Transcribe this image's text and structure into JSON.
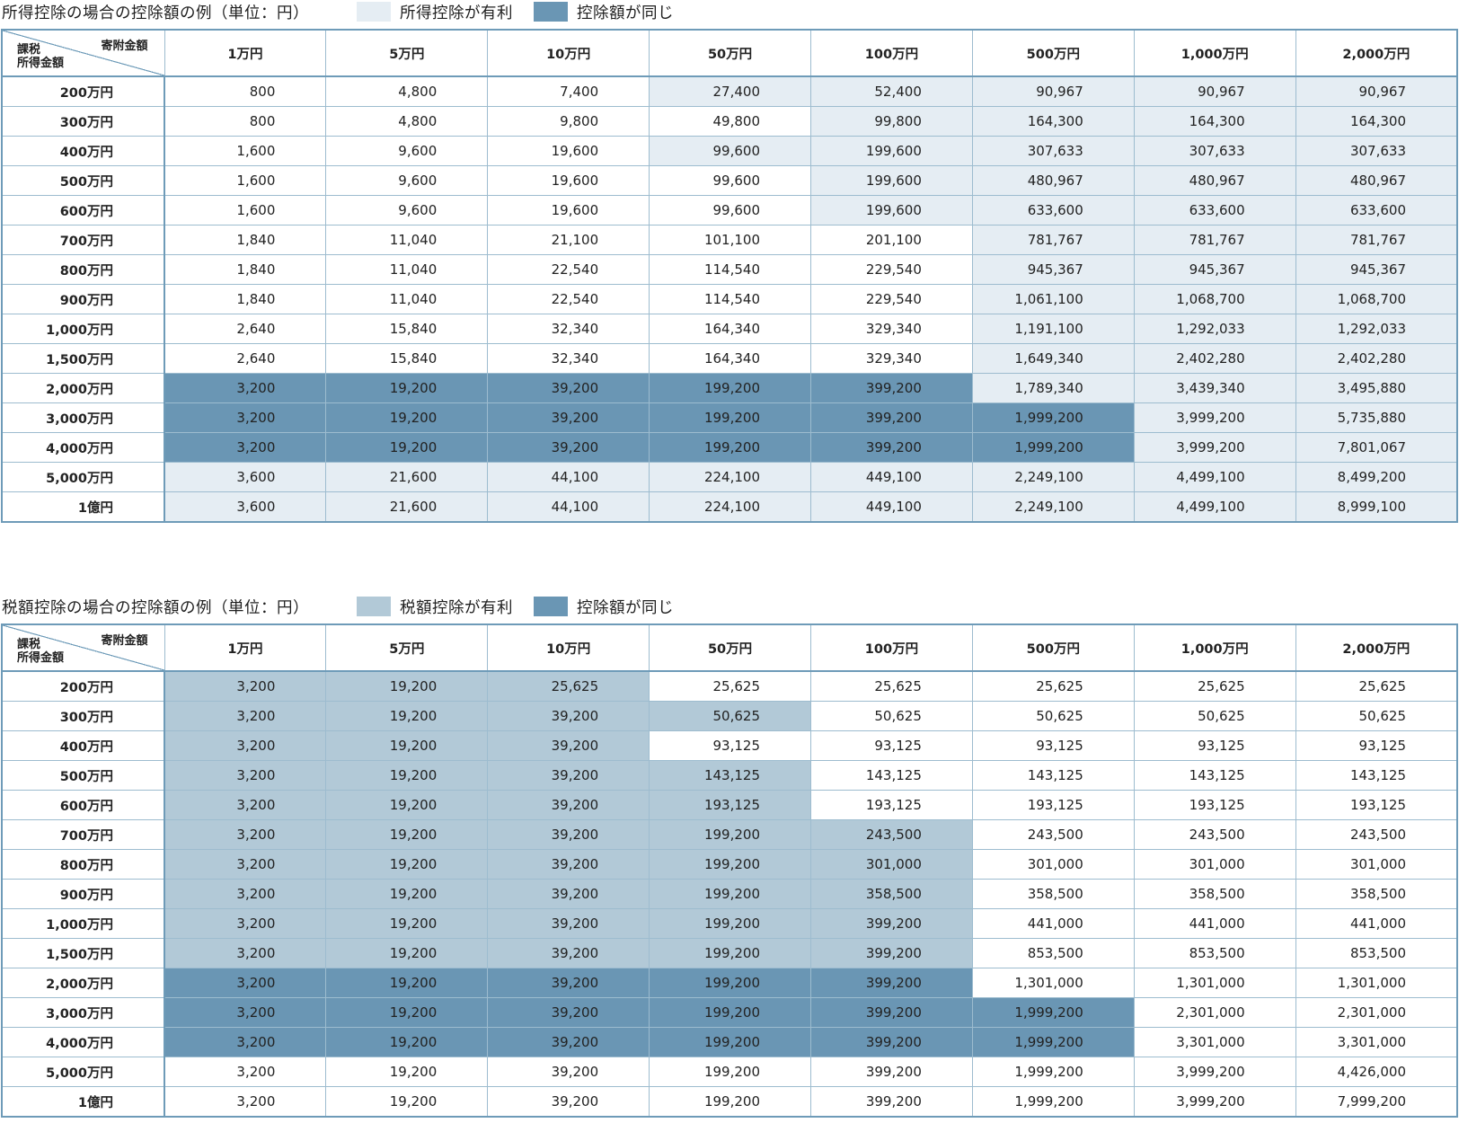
{
  "colors": {
    "light_fill": "#e5edf3",
    "mid_fill": "#b2c9d7",
    "dark_fill": "#6a96b4",
    "border": "#6e9bb8"
  },
  "tables": [
    {
      "title": "所得控除の場合の控除額の例（単位：円）",
      "legend": [
        {
          "label": "所得控除が有利",
          "color": "#e5edf3"
        },
        {
          "label": "控除額が同じ",
          "color": "#6a96b4"
        }
      ],
      "corner_top": "寄附金額",
      "corner_bottom": [
        "課税",
        "所得金額"
      ],
      "columns": [
        "1万円",
        "5万円",
        "10万円",
        "50万円",
        "100万円",
        "500万円",
        "1,000万円",
        "2,000万円"
      ],
      "rows": [
        {
          "label": "200万円",
          "values": [
            "800",
            "4,800",
            "7,400",
            "27,400",
            "52,400",
            "90,967",
            "90,967",
            "90,967"
          ],
          "shade": [
            "",
            "",
            "",
            "L",
            "L",
            "L",
            "L",
            "L"
          ]
        },
        {
          "label": "300万円",
          "values": [
            "800",
            "4,800",
            "9,800",
            "49,800",
            "99,800",
            "164,300",
            "164,300",
            "164,300"
          ],
          "shade": [
            "",
            "",
            "",
            "",
            "L",
            "L",
            "L",
            "L"
          ]
        },
        {
          "label": "400万円",
          "values": [
            "1,600",
            "9,600",
            "19,600",
            "99,600",
            "199,600",
            "307,633",
            "307,633",
            "307,633"
          ],
          "shade": [
            "",
            "",
            "",
            "L",
            "L",
            "L",
            "L",
            "L"
          ]
        },
        {
          "label": "500万円",
          "values": [
            "1,600",
            "9,600",
            "19,600",
            "99,600",
            "199,600",
            "480,967",
            "480,967",
            "480,967"
          ],
          "shade": [
            "",
            "",
            "",
            "",
            "L",
            "L",
            "L",
            "L"
          ]
        },
        {
          "label": "600万円",
          "values": [
            "1,600",
            "9,600",
            "19,600",
            "99,600",
            "199,600",
            "633,600",
            "633,600",
            "633,600"
          ],
          "shade": [
            "",
            "",
            "",
            "",
            "L",
            "L",
            "L",
            "L"
          ]
        },
        {
          "label": "700万円",
          "values": [
            "1,840",
            "11,040",
            "21,100",
            "101,100",
            "201,100",
            "781,767",
            "781,767",
            "781,767"
          ],
          "shade": [
            "",
            "",
            "",
            "",
            "",
            "L",
            "L",
            "L"
          ]
        },
        {
          "label": "800万円",
          "values": [
            "1,840",
            "11,040",
            "22,540",
            "114,540",
            "229,540",
            "945,367",
            "945,367",
            "945,367"
          ],
          "shade": [
            "",
            "",
            "",
            "",
            "",
            "L",
            "L",
            "L"
          ]
        },
        {
          "label": "900万円",
          "values": [
            "1,840",
            "11,040",
            "22,540",
            "114,540",
            "229,540",
            "1,061,100",
            "1,068,700",
            "1,068,700"
          ],
          "shade": [
            "",
            "",
            "",
            "",
            "",
            "L",
            "L",
            "L"
          ]
        },
        {
          "label": "1,000万円",
          "values": [
            "2,640",
            "15,840",
            "32,340",
            "164,340",
            "329,340",
            "1,191,100",
            "1,292,033",
            "1,292,033"
          ],
          "shade": [
            "",
            "",
            "",
            "",
            "",
            "L",
            "L",
            "L"
          ]
        },
        {
          "label": "1,500万円",
          "values": [
            "2,640",
            "15,840",
            "32,340",
            "164,340",
            "329,340",
            "1,649,340",
            "2,402,280",
            "2,402,280"
          ],
          "shade": [
            "",
            "",
            "",
            "",
            "",
            "L",
            "L",
            "L"
          ]
        },
        {
          "label": "2,000万円",
          "values": [
            "3,200",
            "19,200",
            "39,200",
            "199,200",
            "399,200",
            "1,789,340",
            "3,439,340",
            "3,495,880"
          ],
          "shade": [
            "D",
            "D",
            "D",
            "D",
            "D",
            "L",
            "L",
            "L"
          ]
        },
        {
          "label": "3,000万円",
          "values": [
            "3,200",
            "19,200",
            "39,200",
            "199,200",
            "399,200",
            "1,999,200",
            "3,999,200",
            "5,735,880"
          ],
          "shade": [
            "D",
            "D",
            "D",
            "D",
            "D",
            "D",
            "L",
            "L"
          ]
        },
        {
          "label": "4,000万円",
          "values": [
            "3,200",
            "19,200",
            "39,200",
            "199,200",
            "399,200",
            "1,999,200",
            "3,999,200",
            "7,801,067"
          ],
          "shade": [
            "D",
            "D",
            "D",
            "D",
            "D",
            "D",
            "L",
            "L"
          ]
        },
        {
          "label": "5,000万円",
          "values": [
            "3,600",
            "21,600",
            "44,100",
            "224,100",
            "449,100",
            "2,249,100",
            "4,499,100",
            "8,499,200"
          ],
          "shade": [
            "L",
            "L",
            "L",
            "L",
            "L",
            "L",
            "L",
            "L"
          ]
        },
        {
          "label": "1億円",
          "values": [
            "3,600",
            "21,600",
            "44,100",
            "224,100",
            "449,100",
            "2,249,100",
            "4,499,100",
            "8,999,100"
          ],
          "shade": [
            "L",
            "L",
            "L",
            "L",
            "L",
            "L",
            "L",
            "L"
          ]
        }
      ]
    },
    {
      "title": "税額控除の場合の控除額の例（単位：円）",
      "legend": [
        {
          "label": "税額控除が有利",
          "color": "#b2c9d7"
        },
        {
          "label": "控除額が同じ",
          "color": "#6a96b4"
        }
      ],
      "corner_top": "寄附金額",
      "corner_bottom": [
        "課税",
        "所得金額"
      ],
      "columns": [
        "1万円",
        "5万円",
        "10万円",
        "50万円",
        "100万円",
        "500万円",
        "1,000万円",
        "2,000万円"
      ],
      "rows": [
        {
          "label": "200万円",
          "values": [
            "3,200",
            "19,200",
            "25,625",
            "25,625",
            "25,625",
            "25,625",
            "25,625",
            "25,625"
          ],
          "shade": [
            "M",
            "M",
            "M",
            "",
            "",
            "",
            "",
            ""
          ]
        },
        {
          "label": "300万円",
          "values": [
            "3,200",
            "19,200",
            "39,200",
            "50,625",
            "50,625",
            "50,625",
            "50,625",
            "50,625"
          ],
          "shade": [
            "M",
            "M",
            "M",
            "M",
            "",
            "",
            "",
            ""
          ]
        },
        {
          "label": "400万円",
          "values": [
            "3,200",
            "19,200",
            "39,200",
            "93,125",
            "93,125",
            "93,125",
            "93,125",
            "93,125"
          ],
          "shade": [
            "M",
            "M",
            "M",
            "",
            "",
            "",
            "",
            ""
          ]
        },
        {
          "label": "500万円",
          "values": [
            "3,200",
            "19,200",
            "39,200",
            "143,125",
            "143,125",
            "143,125",
            "143,125",
            "143,125"
          ],
          "shade": [
            "M",
            "M",
            "M",
            "M",
            "",
            "",
            "",
            ""
          ]
        },
        {
          "label": "600万円",
          "values": [
            "3,200",
            "19,200",
            "39,200",
            "193,125",
            "193,125",
            "193,125",
            "193,125",
            "193,125"
          ],
          "shade": [
            "M",
            "M",
            "M",
            "M",
            "",
            "",
            "",
            ""
          ]
        },
        {
          "label": "700万円",
          "values": [
            "3,200",
            "19,200",
            "39,200",
            "199,200",
            "243,500",
            "243,500",
            "243,500",
            "243,500"
          ],
          "shade": [
            "M",
            "M",
            "M",
            "M",
            "M",
            "",
            "",
            ""
          ]
        },
        {
          "label": "800万円",
          "values": [
            "3,200",
            "19,200",
            "39,200",
            "199,200",
            "301,000",
            "301,000",
            "301,000",
            "301,000"
          ],
          "shade": [
            "M",
            "M",
            "M",
            "M",
            "M",
            "",
            "",
            ""
          ]
        },
        {
          "label": "900万円",
          "values": [
            "3,200",
            "19,200",
            "39,200",
            "199,200",
            "358,500",
            "358,500",
            "358,500",
            "358,500"
          ],
          "shade": [
            "M",
            "M",
            "M",
            "M",
            "M",
            "",
            "",
            ""
          ]
        },
        {
          "label": "1,000万円",
          "values": [
            "3,200",
            "19,200",
            "39,200",
            "199,200",
            "399,200",
            "441,000",
            "441,000",
            "441,000"
          ],
          "shade": [
            "M",
            "M",
            "M",
            "M",
            "M",
            "",
            "",
            ""
          ]
        },
        {
          "label": "1,500万円",
          "values": [
            "3,200",
            "19,200",
            "39,200",
            "199,200",
            "399,200",
            "853,500",
            "853,500",
            "853,500"
          ],
          "shade": [
            "M",
            "M",
            "M",
            "M",
            "M",
            "",
            "",
            ""
          ]
        },
        {
          "label": "2,000万円",
          "values": [
            "3,200",
            "19,200",
            "39,200",
            "199,200",
            "399,200",
            "1,301,000",
            "1,301,000",
            "1,301,000"
          ],
          "shade": [
            "D",
            "D",
            "D",
            "D",
            "D",
            "",
            "",
            ""
          ]
        },
        {
          "label": "3,000万円",
          "values": [
            "3,200",
            "19,200",
            "39,200",
            "199,200",
            "399,200",
            "1,999,200",
            "2,301,000",
            "2,301,000"
          ],
          "shade": [
            "D",
            "D",
            "D",
            "D",
            "D",
            "D",
            "",
            ""
          ]
        },
        {
          "label": "4,000万円",
          "values": [
            "3,200",
            "19,200",
            "39,200",
            "199,200",
            "399,200",
            "1,999,200",
            "3,301,000",
            "3,301,000"
          ],
          "shade": [
            "D",
            "D",
            "D",
            "D",
            "D",
            "D",
            "",
            ""
          ]
        },
        {
          "label": "5,000万円",
          "values": [
            "3,200",
            "19,200",
            "39,200",
            "199,200",
            "399,200",
            "1,999,200",
            "3,999,200",
            "4,426,000"
          ],
          "shade": [
            "",
            "",
            "",
            "",
            "",
            "",
            "",
            ""
          ]
        },
        {
          "label": "1億円",
          "values": [
            "3,200",
            "19,200",
            "39,200",
            "199,200",
            "399,200",
            "1,999,200",
            "3,999,200",
            "7,999,200"
          ],
          "shade": [
            "",
            "",
            "",
            "",
            "",
            "",
            "",
            ""
          ]
        }
      ]
    }
  ]
}
